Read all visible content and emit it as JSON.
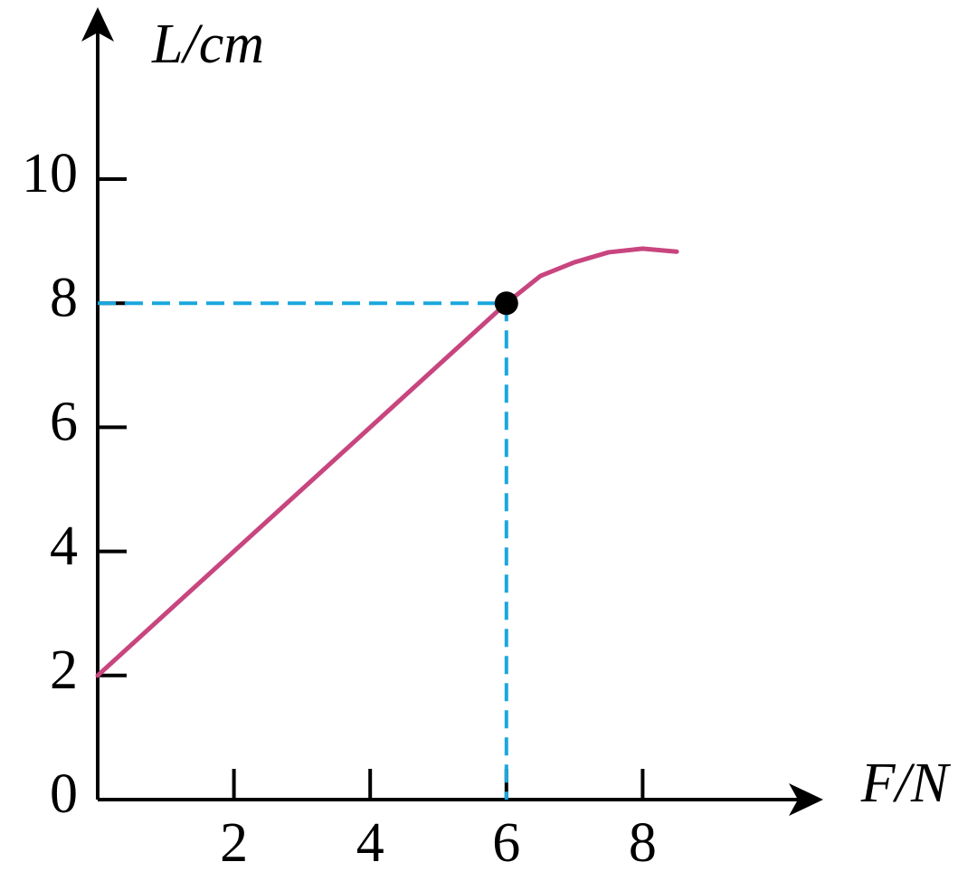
{
  "chart_data": {
    "type": "line",
    "x_label": "F/N",
    "y_label": "L/cm",
    "x": [
      0,
      6,
      6.5,
      7,
      7.5,
      8,
      8.5
    ],
    "series": [
      {
        "color": "#c8457f",
        "values": [
          2,
          8,
          8.44,
          8.66,
          8.82,
          8.88,
          8.83
        ]
      }
    ],
    "highlight": {
      "x": 6,
      "y": 8,
      "color": "#000000",
      "guide_color": "#1aa7de"
    },
    "xlim": [
      0,
      10.6
    ],
    "ylim": [
      0,
      12.7
    ],
    "xticks": [
      2,
      4,
      6,
      8
    ],
    "yticks": [
      0,
      2,
      4,
      6,
      8,
      10
    ]
  }
}
